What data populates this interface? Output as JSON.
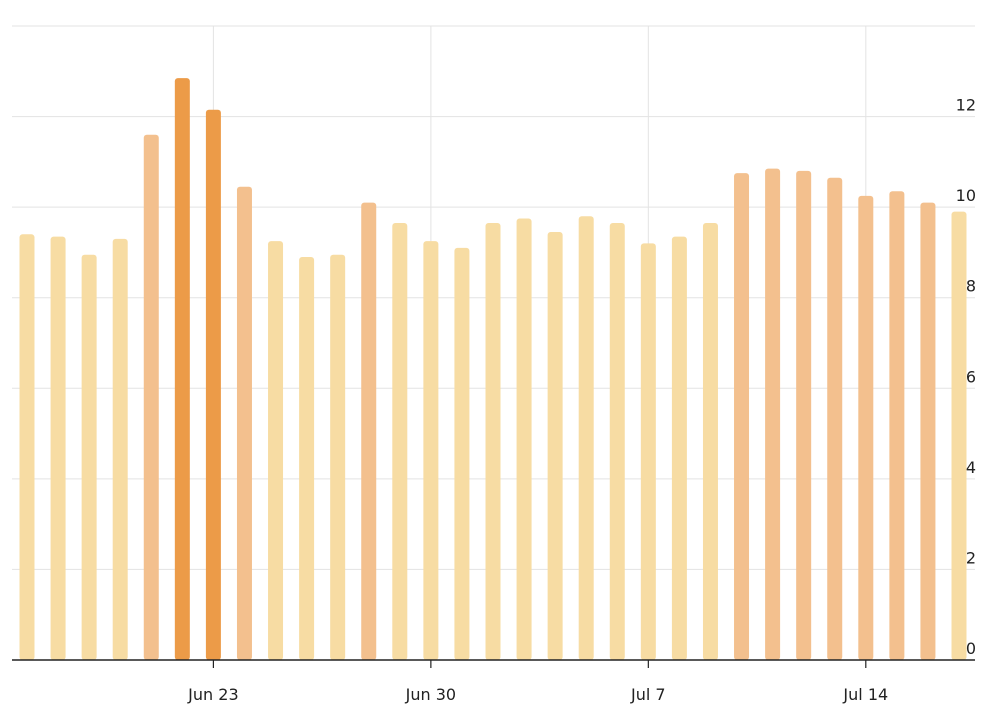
{
  "chart_data": {
    "type": "bar",
    "title": "",
    "xlabel": "",
    "ylabel": "",
    "ylim": [
      0,
      14
    ],
    "y_ticks": [
      0,
      2,
      4,
      6,
      8,
      10,
      12
    ],
    "y_tick_labels": [
      "0",
      "2",
      "4",
      "6",
      "8",
      "10",
      "12"
    ],
    "y_axis_position": "right",
    "grid": true,
    "x_tick_labels": [
      {
        "index": 6,
        "label": "Jun 23"
      },
      {
        "index": 13,
        "label": "Jun 30"
      },
      {
        "index": 20,
        "label": "Jul 7"
      },
      {
        "index": 27,
        "label": "Jul 14"
      }
    ],
    "categories": [
      "Jun 17",
      "Jun 18",
      "Jun 19",
      "Jun 20",
      "Jun 21",
      "Jun 22",
      "Jun 23",
      "Jun 24",
      "Jun 25",
      "Jun 26",
      "Jun 27",
      "Jun 28",
      "Jun 29",
      "Jun 30",
      "Jul 1",
      "Jul 2",
      "Jul 3",
      "Jul 4",
      "Jul 5",
      "Jul 6",
      "Jul 7",
      "Jul 8",
      "Jul 9",
      "Jul 10",
      "Jul 11",
      "Jul 12",
      "Jul 13",
      "Jul 14",
      "Jul 15",
      "Jul 16",
      "Jul 17"
    ],
    "values": [
      9.4,
      9.35,
      8.95,
      9.3,
      11.6,
      12.85,
      12.15,
      10.45,
      9.25,
      8.9,
      8.95,
      10.1,
      9.65,
      9.25,
      9.1,
      9.65,
      9.75,
      9.45,
      9.8,
      9.65,
      9.2,
      9.35,
      9.65,
      10.75,
      10.85,
      10.8,
      10.65,
      10.25,
      10.35,
      10.1,
      9.9
    ],
    "color_levels": [
      "light",
      "light",
      "light",
      "light",
      "medium",
      "dark",
      "dark",
      "medium",
      "light",
      "light",
      "light",
      "medium",
      "light",
      "light",
      "light",
      "light",
      "light",
      "light",
      "light",
      "light",
      "light",
      "light",
      "light",
      "medium",
      "medium",
      "medium",
      "medium",
      "medium",
      "medium",
      "medium",
      "light"
    ],
    "colors": {
      "light": "#f7dca3",
      "medium": "#f3c08e",
      "dark": "#ec9b48"
    }
  }
}
